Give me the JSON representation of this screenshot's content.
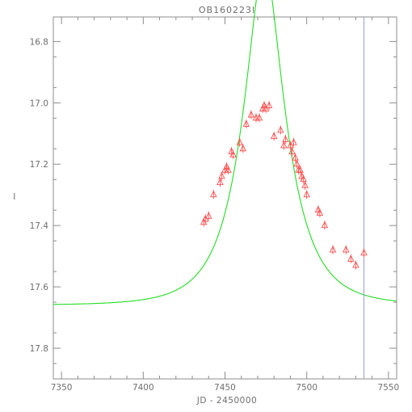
{
  "chart_data": {
    "type": "scatter",
    "title": "OB160223l",
    "xlabel": "JD - 2450000",
    "ylabel": "I",
    "xlim": [
      7345,
      7555
    ],
    "ylim": [
      17.9,
      16.72
    ],
    "y_inverted": true,
    "grid": false,
    "x_ticks": [
      7350,
      7400,
      7450,
      7500,
      7550
    ],
    "x_tick_labels": [
      "7350",
      "7400",
      "7450",
      "7500",
      "7550"
    ],
    "y_ticks": [
      16.8,
      17.0,
      17.2,
      17.4,
      17.6,
      17.8
    ],
    "y_tick_labels": [
      "16.8",
      "17.0",
      "17.2",
      "17.4",
      "17.6",
      "17.8"
    ],
    "marker_vline_x": 7535,
    "colors": {
      "axes": "#8c8c8c",
      "data": "#ff5050",
      "model": "#22dd22",
      "vline": "#9a9ad6"
    },
    "series": [
      {
        "type": "scatter",
        "marker": "triangle",
        "points": [
          [
            7437,
            17.39
          ],
          [
            7438,
            17.38
          ],
          [
            7440,
            17.37
          ],
          [
            7443,
            17.3
          ],
          [
            7447,
            17.26
          ],
          [
            7448,
            17.24
          ],
          [
            7450,
            17.22
          ],
          [
            7451,
            17.21
          ],
          [
            7452,
            17.22
          ],
          [
            7454,
            17.16
          ],
          [
            7455,
            17.17
          ],
          [
            7459,
            17.13
          ],
          [
            7461,
            17.15
          ],
          [
            7463,
            17.07
          ],
          [
            7466,
            17.04
          ],
          [
            7469,
            17.05
          ],
          [
            7471,
            17.05
          ],
          [
            7473,
            17.02
          ],
          [
            7474,
            17.01
          ],
          [
            7475,
            17.02
          ],
          [
            7477,
            17.01
          ],
          [
            7480,
            17.11
          ],
          [
            7484,
            17.09
          ],
          [
            7486,
            17.14
          ],
          [
            7487,
            17.12
          ],
          [
            7490,
            17.14
          ],
          [
            7491,
            17.16
          ],
          [
            7492,
            17.13
          ],
          [
            7493,
            17.18
          ],
          [
            7494,
            17.2
          ],
          [
            7495,
            17.22
          ],
          [
            7496,
            17.22
          ],
          [
            7497,
            17.24
          ],
          [
            7498,
            17.25
          ],
          [
            7499,
            17.27
          ],
          [
            7500,
            17.3
          ],
          [
            7507,
            17.35
          ],
          [
            7508,
            17.36
          ],
          [
            7511,
            17.4
          ],
          [
            7516,
            17.48
          ],
          [
            7524,
            17.48
          ],
          [
            7527,
            17.51
          ],
          [
            7530,
            17.53
          ],
          [
            7535,
            17.49
          ]
        ]
      },
      {
        "type": "line",
        "model": "pspl",
        "t0": 7474,
        "tE": 25,
        "u0": 0.38,
        "baseline_mag": 17.66
      }
    ]
  }
}
